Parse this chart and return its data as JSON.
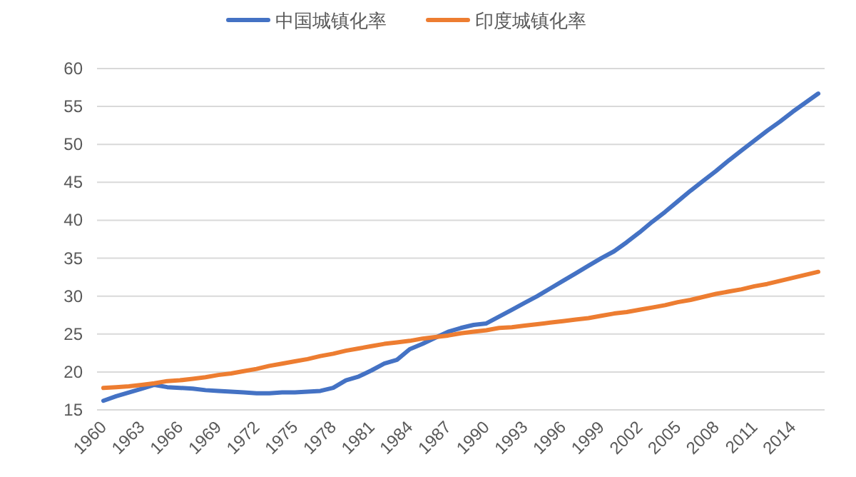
{
  "chart_data": {
    "type": "line",
    "categories": [
      "1960",
      null,
      null,
      "1963",
      null,
      null,
      "1966",
      null,
      null,
      "1969",
      null,
      null,
      "1972",
      null,
      null,
      "1975",
      null,
      null,
      "1978",
      null,
      null,
      "1981",
      null,
      null,
      "1984",
      null,
      null,
      "1987",
      null,
      null,
      "1990",
      null,
      null,
      "1993",
      null,
      null,
      "1996",
      null,
      null,
      "1999",
      null,
      null,
      "2002",
      null,
      null,
      "2005",
      null,
      null,
      "2008",
      null,
      null,
      "2011",
      null,
      null,
      "2014",
      null,
      null
    ],
    "series": [
      {
        "name": "中国城镇化率",
        "color": "#4472c4",
        "values": [
          16.2,
          16.8,
          17.3,
          17.8,
          18.3,
          18.0,
          17.9,
          17.8,
          17.6,
          17.5,
          17.4,
          17.3,
          17.2,
          17.2,
          17.3,
          17.3,
          17.4,
          17.5,
          17.9,
          18.9,
          19.4,
          20.2,
          21.1,
          21.6,
          23.0,
          23.7,
          24.5,
          25.3,
          25.8,
          26.2,
          26.4,
          27.3,
          28.2,
          29.1,
          30.0,
          31.0,
          32.0,
          33.0,
          34.0,
          35.0,
          35.9,
          37.1,
          38.4,
          39.8,
          41.1,
          42.5,
          43.9,
          45.2,
          46.5,
          47.9,
          49.2,
          50.5,
          51.8,
          53.0,
          54.3,
          55.5,
          56.7
        ]
      },
      {
        "name": "印度城镇化率",
        "color": "#ed7d31",
        "values": [
          17.9,
          18.0,
          18.1,
          18.3,
          18.5,
          18.8,
          18.9,
          19.1,
          19.3,
          19.6,
          19.8,
          20.1,
          20.4,
          20.8,
          21.1,
          21.4,
          21.7,
          22.1,
          22.4,
          22.8,
          23.1,
          23.4,
          23.7,
          23.9,
          24.1,
          24.4,
          24.6,
          24.8,
          25.1,
          25.3,
          25.5,
          25.8,
          25.9,
          26.1,
          26.3,
          26.5,
          26.7,
          26.9,
          27.1,
          27.4,
          27.7,
          27.9,
          28.2,
          28.5,
          28.8,
          29.2,
          29.5,
          29.9,
          30.3,
          30.6,
          30.9,
          31.3,
          31.6,
          32.0,
          32.4,
          32.8,
          33.2
        ]
      }
    ],
    "ylim": [
      15,
      60
    ],
    "yticks": [
      15,
      20,
      25,
      30,
      35,
      40,
      45,
      50,
      55,
      60
    ],
    "grid": "y",
    "legend": "top",
    "marker": "none",
    "line_style": "solid"
  }
}
